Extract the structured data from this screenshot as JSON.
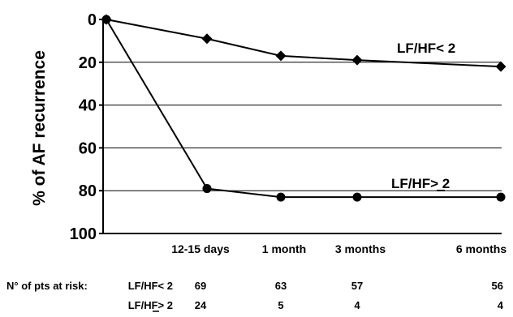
{
  "chart_data": {
    "type": "line",
    "ylabel": "% of AF recurrence",
    "xlabel": "",
    "ylim": [
      0,
      100
    ],
    "y_inverted": true,
    "yticks": [
      "0",
      "20",
      "40",
      "60",
      "80",
      "100"
    ],
    "grid": "horizontal",
    "categories": [
      "",
      "12-15 days",
      "1 month",
      "3 months",
      "6 months"
    ],
    "series": [
      {
        "name": "LF/HF< 2",
        "marker": "diamond",
        "values": [
          0,
          9,
          17,
          19,
          22
        ]
      },
      {
        "name": "LF/HF> 2",
        "marker": "circle",
        "values": [
          0,
          79,
          83,
          83,
          83
        ]
      }
    ],
    "risk_table": {
      "title": "N° of pts at risk:",
      "rows": [
        {
          "label": "LF/HF< 2",
          "values": [
            "69",
            "63",
            "57",
            "56"
          ]
        },
        {
          "label": "LF/HF> 2",
          "values": [
            "24",
            "5",
            "4",
            "4"
          ]
        }
      ]
    }
  }
}
